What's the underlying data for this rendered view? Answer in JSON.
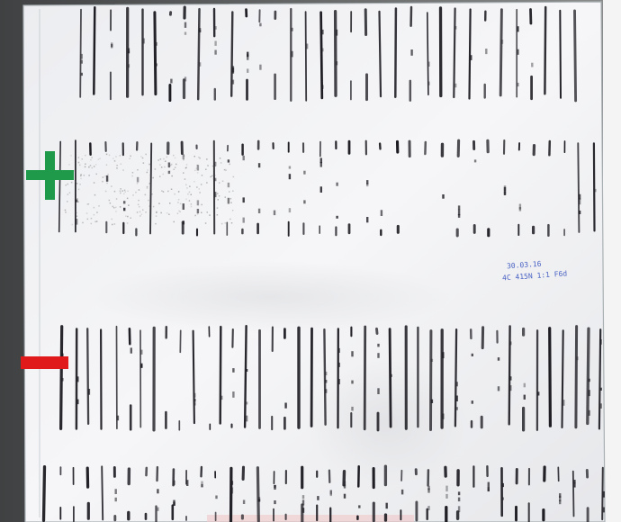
{
  "scene": {
    "description_colors": {
      "background": "#6e7070",
      "plate": "#f2f2f4",
      "band": "#1c1c22",
      "plus_marker": "#1e9a4a",
      "minus_marker": "#e01a1a",
      "ink": "#4a63c4"
    },
    "markers": {
      "positive": "plus-marker",
      "negative": "minus-marker"
    },
    "handwritten_note": {
      "date": "30.03.16",
      "code": "4C 415N 1:1 F6d"
    }
  }
}
